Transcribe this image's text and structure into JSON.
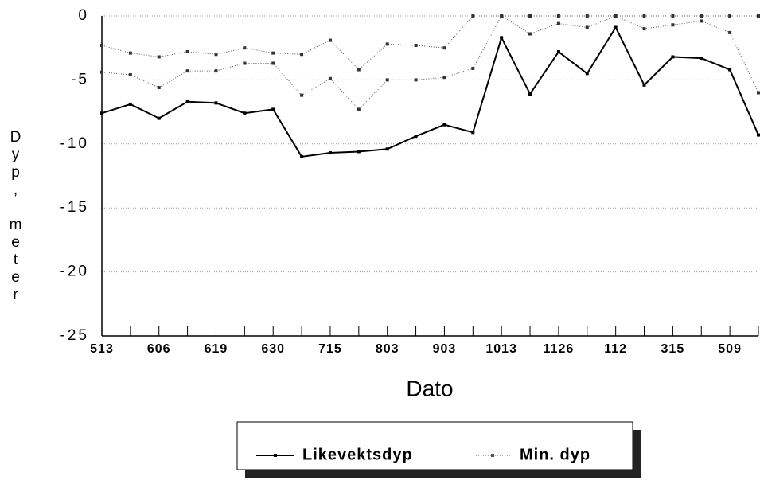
{
  "chart_data": {
    "type": "line",
    "x_label": "Dato",
    "y_label": "Dyp, meter",
    "categories": [
      "513",
      null,
      "606",
      null,
      "619",
      null,
      "630",
      null,
      "715",
      null,
      "803",
      null,
      "903",
      null,
      "1013",
      null,
      "1126",
      null,
      "112",
      null,
      "315",
      null,
      "509",
      null
    ],
    "series": [
      {
        "name": "Likevektsdyp",
        "color": "#000000",
        "style": "solid",
        "values": [
          -7.6,
          -6.9,
          -8.0,
          -6.7,
          -6.8,
          -7.6,
          -7.3,
          -11.0,
          -10.7,
          -10.6,
          -10.4,
          -9.4,
          -8.5,
          -9.1,
          -1.7,
          -6.1,
          -2.8,
          -4.5,
          -0.9,
          -5.4,
          -3.2,
          -3.3,
          -4.2,
          -9.3
        ]
      },
      {
        "name": "Min. dyp",
        "color": "#555555",
        "style": "dotted",
        "values": [
          -4.4,
          -4.6,
          -5.6,
          -4.3,
          -4.3,
          -3.7,
          -3.7,
          -6.2,
          -4.9,
          -7.3,
          -5.0,
          -5.0,
          -4.8,
          -4.1,
          0,
          -1.4,
          -0.6,
          -0.9,
          0,
          -1.0,
          -0.7,
          -0.4,
          -1.3,
          -6.0
        ]
      },
      {
        "color": "#555555",
        "style": "dotted",
        "values": [
          -2.3,
          -2.9,
          -3.2,
          -2.8,
          -3.0,
          -2.5,
          -2.9,
          -3.0,
          -1.9,
          -4.2,
          -2.2,
          -2.3,
          -2.5,
          0,
          0,
          0,
          0,
          0,
          0,
          0,
          0,
          0,
          0,
          0
        ]
      }
    ],
    "ylim": [
      -25,
      0
    ],
    "yticks": [
      -25,
      -20,
      -15,
      -10,
      -5,
      0
    ],
    "grid": true,
    "legend": "bottom"
  }
}
